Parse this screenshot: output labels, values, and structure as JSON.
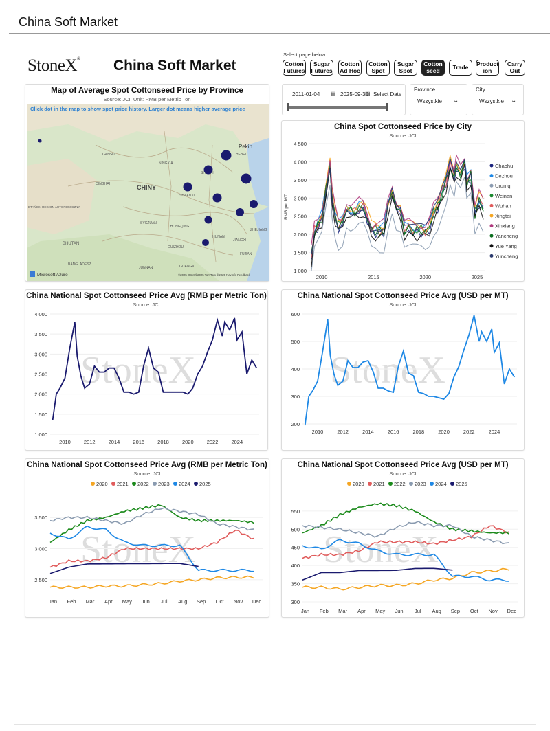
{
  "app_title": "China Soft Market",
  "header": {
    "logo": "StoneX",
    "title": "China Soft Market"
  },
  "nav": {
    "caption": "Select page below:",
    "buttons": [
      {
        "line1": "Cotton",
        "line2": "Futures",
        "active": false
      },
      {
        "line1": "Sugar",
        "line2": "Futures",
        "active": false
      },
      {
        "line1": "Cotton",
        "line2": "Ad Hoc",
        "active": false
      },
      {
        "line1": "Cotton",
        "line2": "Spot",
        "active": false
      },
      {
        "line1": "Sugar",
        "line2": "Spot",
        "active": false
      },
      {
        "line1": "Cotton",
        "line2": "seed",
        "active": true
      },
      {
        "line1": "Trade",
        "line2": "",
        "active": false
      },
      {
        "line1": "Product",
        "line2": "ion",
        "active": false
      },
      {
        "line1": "Carry",
        "line2": "Out",
        "active": false
      }
    ]
  },
  "filters": {
    "date_start": "2011-01-04",
    "date_end": "2025-09-30",
    "select_date": "Select Date",
    "province_label": "Province",
    "province_value": "Wszystkie",
    "city_label": "City",
    "city_value": "Wszystkie"
  },
  "map": {
    "title": "Map of Average Spot Cottonseed Price by Province",
    "subtitle": "Source: JCI; Unit: RMB per Metric Ton",
    "instruction": "Click dot in the map to show spot price history. Larger dot means higher average price",
    "labels": [
      "Pekin",
      "CHINY",
      "GANSU",
      "QINGHAI",
      "NINGXIA",
      "SHANXI",
      "HEBEI",
      "SHAANXI",
      "SYCZUAN",
      "CHONGQING",
      "GUIZHOU",
      "JUNNAN",
      "GUANGXI",
      "HUNAN",
      "JIANGXI",
      "FUJIAN",
      "ZHEJIANG",
      "BHUTAN",
      "BANGLADESZ",
      "ETAŃSKI REGION AUTONOMICZNY"
    ],
    "attribution": "Microsoft Azure",
    "copyright": "©2025 OSM ©2025 TomTom ©2025 NavInfo Feedback"
  },
  "city_chart": {
    "title": "China Spot Cottonseed Price by City",
    "subtitle": "Source: JCI",
    "ylabel": "RMB per MT",
    "yticks": [
      "4 500",
      "4 000",
      "3 500",
      "3 000",
      "2 500",
      "2 000",
      "1 500",
      "1 000"
    ],
    "xticks": [
      "2010",
      "2015",
      "2020",
      "2025"
    ],
    "legend": [
      {
        "name": "Chaohu",
        "color": "#1a237e"
      },
      {
        "name": "Dezhou",
        "color": "#1e88e5"
      },
      {
        "name": "Urumqi",
        "color": "#8a9bb0"
      },
      {
        "name": "Weinan",
        "color": "#1b8a2f"
      },
      {
        "name": "Wuhan",
        "color": "#e05c5c"
      },
      {
        "name": "Xingtai",
        "color": "#f5a623"
      },
      {
        "name": "Xinxiang",
        "color": "#b03a7e"
      },
      {
        "name": "Yancheng",
        "color": "#0a6e1e"
      },
      {
        "name": "Yue Yang",
        "color": "#111111"
      },
      {
        "name": "Yuncheng",
        "color": "#2b3a6e"
      }
    ]
  },
  "national_rmb": {
    "title": "China National Spot Cottonseed Price Avg (RMB per Metric Ton)",
    "subtitle": "Source: JCI",
    "yticks": [
      "4 000",
      "3 500",
      "3 000",
      "2 500",
      "2 000",
      "1 500",
      "1 000"
    ],
    "xticks": [
      "2010",
      "2012",
      "2014",
      "2016",
      "2018",
      "2020",
      "2022",
      "2024"
    ]
  },
  "national_usd": {
    "title": "China National Spot Cottonseed Price Avg (USD per MT)",
    "subtitle": "Source: JCI",
    "yticks": [
      "600",
      "500",
      "400",
      "300",
      "200"
    ],
    "xticks": [
      "2010",
      "2012",
      "2014",
      "2016",
      "2018",
      "2020",
      "2022",
      "2024"
    ]
  },
  "seasonal_rmb": {
    "title": "China National Spot Cottonseed Price Avg (RMB per Metric Ton)",
    "subtitle": "Source: JCI",
    "yticks": [
      "3 500",
      "3 000",
      "2 500"
    ],
    "xticks": [
      "Jan",
      "Feb",
      "Mar",
      "Apr",
      "May",
      "Jun",
      "Jul",
      "Aug",
      "Sep",
      "Oct",
      "Nov",
      "Dec"
    ]
  },
  "seasonal_usd": {
    "title": "China National Spot Cottonseed Price Avg (USD per MT)",
    "subtitle": "Source: JCI",
    "yticks": [
      "550",
      "500",
      "450",
      "400",
      "350",
      "300"
    ],
    "xticks": [
      "Jan",
      "Feb",
      "Mar",
      "Apr",
      "May",
      "Jun",
      "Jul",
      "Aug",
      "Sep",
      "Oct",
      "Nov",
      "Dec"
    ]
  },
  "seasonal_legend": [
    {
      "name": "2020",
      "color": "#f5a623"
    },
    {
      "name": "2021",
      "color": "#e05c5c"
    },
    {
      "name": "2022",
      "color": "#1b8a1b"
    },
    {
      "name": "2023",
      "color": "#8a9bb0"
    },
    {
      "name": "2024",
      "color": "#1e88e5"
    },
    {
      "name": "2025",
      "color": "#1a1a6e"
    }
  ],
  "watermark": "StoneX",
  "chart_data": [
    {
      "type": "line",
      "title": "China National Spot Cottonseed Price Avg (RMB per Metric Ton)",
      "ylim": [
        1000,
        4000
      ],
      "x": [
        2009.0,
        2009.3,
        2009.6,
        2010.0,
        2010.4,
        2010.8,
        2011.0,
        2011.3,
        2011.6,
        2012.0,
        2012.4,
        2012.8,
        2013.2,
        2013.6,
        2014.0,
        2014.4,
        2014.8,
        2015.2,
        2015.6,
        2016.0,
        2016.4,
        2016.8,
        2017.2,
        2017.6,
        2018.0,
        2018.4,
        2018.8,
        2019.2,
        2019.6,
        2020.0,
        2020.4,
        2020.8,
        2021.2,
        2021.6,
        2022.0,
        2022.4,
        2022.8,
        2023.0,
        2023.4,
        2023.8,
        2024.0,
        2024.4,
        2024.8,
        2025.2,
        2025.6
      ],
      "y": [
        1350,
        2000,
        2150,
        2400,
        3150,
        3800,
        2950,
        2450,
        2150,
        2250,
        2700,
        2550,
        2550,
        2650,
        2650,
        2400,
        2050,
        2050,
        2000,
        2050,
        2700,
        3150,
        2650,
        2550,
        2050,
        2050,
        2050,
        2050,
        2050,
        2000,
        2150,
        2500,
        2700,
        3050,
        3350,
        3850,
        3450,
        3800,
        3600,
        3900,
        3350,
        3550,
        2500,
        2850,
        2650
      ]
    },
    {
      "type": "line",
      "title": "China National Spot Cottonseed Price Avg (USD per MT)",
      "ylim": [
        200,
        600
      ],
      "x": [
        2009.0,
        2009.3,
        2009.6,
        2010.0,
        2010.4,
        2010.8,
        2011.0,
        2011.3,
        2011.6,
        2012.0,
        2012.4,
        2012.8,
        2013.2,
        2013.6,
        2014.0,
        2014.4,
        2014.8,
        2015.2,
        2015.6,
        2016.0,
        2016.4,
        2016.8,
        2017.2,
        2017.6,
        2018.0,
        2018.4,
        2018.8,
        2019.2,
        2019.6,
        2020.0,
        2020.4,
        2020.8,
        2021.2,
        2021.6,
        2022.0,
        2022.4,
        2022.8,
        2023.0,
        2023.4,
        2023.8,
        2024.0,
        2024.4,
        2024.8,
        2025.2,
        2025.6
      ],
      "y": [
        195,
        300,
        320,
        355,
        465,
        580,
        450,
        380,
        340,
        355,
        430,
        405,
        405,
        425,
        430,
        390,
        330,
        330,
        320,
        315,
        410,
        465,
        385,
        375,
        315,
        310,
        300,
        300,
        295,
        290,
        310,
        370,
        410,
        470,
        525,
        595,
        500,
        535,
        500,
        545,
        460,
        495,
        345,
        400,
        370
      ]
    },
    {
      "type": "line",
      "title": "China National Spot Cottonseed Price Avg (RMB per Metric Ton)",
      "categories": [
        "Jan",
        "Feb",
        "Mar",
        "Apr",
        "May",
        "Jun",
        "Jul",
        "Aug",
        "Sep",
        "Oct",
        "Nov",
        "Dec"
      ],
      "ylim": [
        2300,
        3800
      ],
      "series": [
        {
          "name": "2020",
          "values": [
            2380,
            2380,
            2380,
            2400,
            2400,
            2420,
            2440,
            2480,
            2500,
            2530,
            2540,
            2540
          ]
        },
        {
          "name": "2021",
          "values": [
            2700,
            2800,
            2800,
            2850,
            3000,
            3000,
            3000,
            3000,
            3000,
            3100,
            3300,
            3150
          ]
        },
        {
          "name": "2022",
          "values": [
            3100,
            3300,
            3450,
            3500,
            3600,
            3650,
            3700,
            3500,
            3450,
            3450,
            3450,
            3420
          ]
        },
        {
          "name": "2023",
          "values": [
            3450,
            3500,
            3500,
            3450,
            3400,
            3550,
            3650,
            3600,
            3550,
            3400,
            3350,
            3300
          ]
        },
        {
          "name": "2024",
          "values": [
            3250,
            3150,
            3350,
            3300,
            3100,
            3050,
            3050,
            3050,
            2650,
            2650,
            2650,
            2650
          ]
        },
        {
          "name": "2025",
          "values": [
            2600,
            2700,
            2750,
            2750,
            2750,
            2750,
            2750,
            2750,
            2700,
            null,
            null,
            null
          ]
        }
      ]
    },
    {
      "type": "line",
      "title": "China National Spot Cottonseed Price Avg (USD per MT)",
      "categories": [
        "Jan",
        "Feb",
        "Mar",
        "Apr",
        "May",
        "Jun",
        "Jul",
        "Aug",
        "Sep",
        "Oct",
        "Nov",
        "Dec"
      ],
      "ylim": [
        300,
        580
      ],
      "series": [
        {
          "name": "2020",
          "values": [
            340,
            340,
            335,
            340,
            345,
            345,
            350,
            360,
            365,
            380,
            385,
            390
          ]
        },
        {
          "name": "2021",
          "values": [
            420,
            430,
            430,
            440,
            465,
            465,
            465,
            460,
            470,
            480,
            510,
            490
          ]
        },
        {
          "name": "2022",
          "values": [
            490,
            510,
            540,
            560,
            570,
            565,
            550,
            520,
            500,
            495,
            490,
            490
          ]
        },
        {
          "name": "2023",
          "values": [
            510,
            505,
            500,
            490,
            480,
            505,
            520,
            510,
            510,
            480,
            470,
            460
          ]
        },
        {
          "name": "2024",
          "values": [
            455,
            445,
            470,
            460,
            440,
            430,
            430,
            430,
            370,
            370,
            360,
            360
          ]
        },
        {
          "name": "2025",
          "values": [
            360,
            380,
            380,
            385,
            385,
            385,
            390,
            390,
            385,
            null,
            null,
            null
          ]
        }
      ]
    }
  ]
}
